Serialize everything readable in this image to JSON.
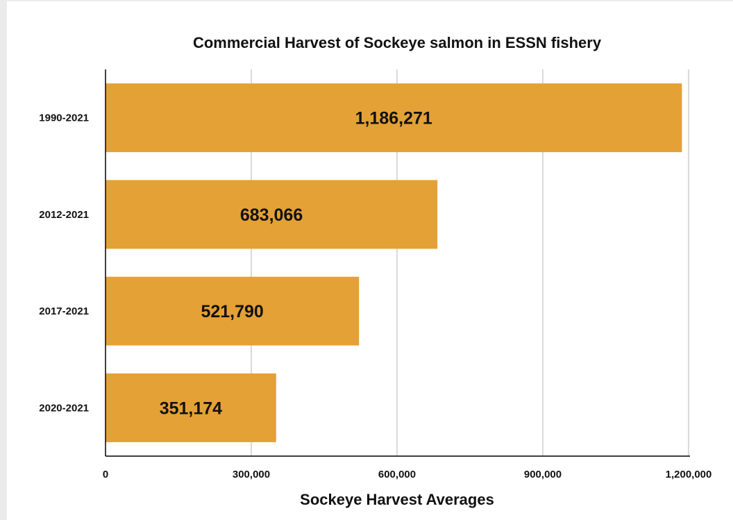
{
  "chart_data": {
    "type": "bar",
    "orientation": "horizontal",
    "title": "Commercial Harvest of Sockeye salmon in ESSN fishery",
    "xlabel": "Sockeye Harvest Averages",
    "ylabel": "",
    "categories": [
      "1990-2021",
      "2012-2021",
      "2017-2021",
      "2020-2021"
    ],
    "values": [
      1186271,
      683066,
      521790,
      351174
    ],
    "data_labels": [
      "1,186,271",
      "683,066",
      "521,790",
      "351,174"
    ],
    "xlim": [
      0,
      1200000
    ],
    "x_ticks": [
      0,
      300000,
      600000,
      900000,
      1200000
    ],
    "x_tick_labels": [
      "0",
      "300,000",
      "600,000",
      "900,000",
      "1,200,000"
    ],
    "grid": "vertical",
    "legend": "none",
    "colors": {
      "bar": "#e4a135",
      "gridline": "#b5b5b5",
      "axis": "#000000",
      "text": "#111111"
    }
  }
}
